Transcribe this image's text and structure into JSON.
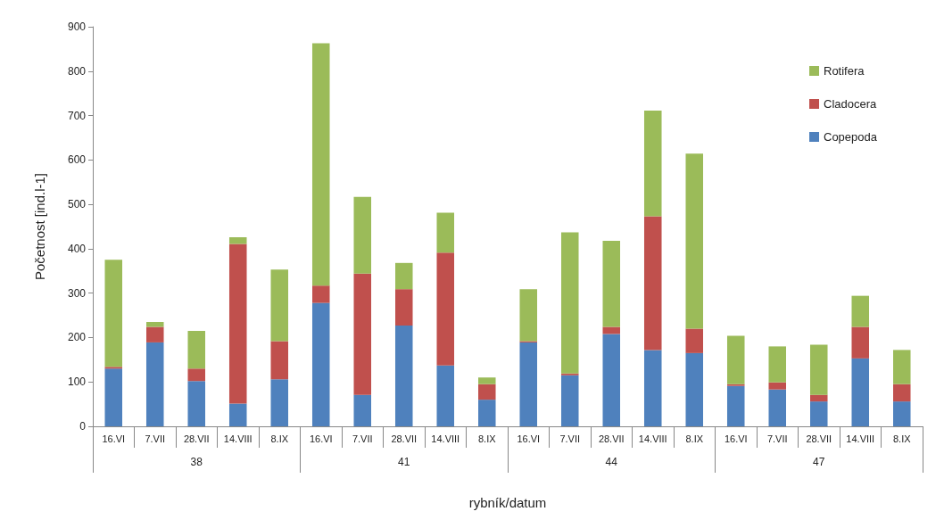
{
  "chart_data": {
    "type": "bar",
    "stacked": true,
    "xlabel": "rybník/datum",
    "ylabel": "Početnost [ind.l-1]",
    "categories": [
      "16.VI",
      "7.VII",
      "28.VII",
      "14.VIII",
      "8.IX",
      "16.VI",
      "7.VII",
      "28.VII",
      "14.VIII",
      "8.IX",
      "16.VI",
      "7.VII",
      "28.VII",
      "14.VIII",
      "8.IX",
      "16.VI",
      "7.VII",
      "28.VII",
      "14.VIII",
      "8.IX"
    ],
    "annotations": [
      "38",
      "41",
      "44",
      "47"
    ],
    "ylim": [
      0,
      900
    ],
    "yticks": [
      0,
      100,
      200,
      300,
      400,
      500,
      600,
      700,
      800,
      900
    ],
    "grid": false,
    "legend": "top right",
    "series": [
      {
        "name": "Copepoda",
        "color": "#4f81bd",
        "values": [
          130,
          189,
          102,
          51,
          106,
          278,
          71,
          227,
          137,
          60,
          189,
          115,
          208,
          172,
          165,
          91,
          83,
          56,
          153,
          56
        ]
      },
      {
        "name": "Cladocera",
        "color": "#c0504d",
        "values": [
          4,
          35,
          28,
          360,
          86,
          39,
          273,
          82,
          254,
          35,
          3,
          4,
          16,
          301,
          55,
          4,
          16,
          15,
          71,
          39
        ]
      },
      {
        "name": "Rotifera",
        "color": "#9bbb59",
        "values": [
          241,
          11,
          85,
          15,
          161,
          546,
          173,
          59,
          90,
          15,
          117,
          318,
          194,
          238,
          394,
          109,
          81,
          113,
          70,
          77
        ]
      }
    ]
  }
}
